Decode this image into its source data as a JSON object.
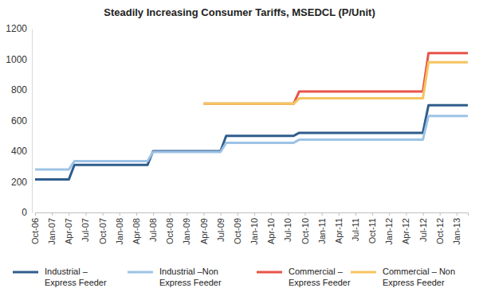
{
  "chart_data": {
    "type": "line",
    "title": "Steadily Increasing Consumer Tariffs, MSEDCL (P/Unit)",
    "categories": [
      "Oct-06",
      null,
      null,
      "Jan-07",
      null,
      null,
      "Apr-07",
      null,
      null,
      "Jul-07",
      null,
      null,
      "Oct-07",
      null,
      null,
      "Jan-08",
      null,
      null,
      "Apr-08",
      null,
      null,
      "Jul-08",
      null,
      null,
      "Oct-08",
      null,
      null,
      "Jan-09",
      null,
      null,
      "Apr-09",
      null,
      null,
      "Jul-09",
      null,
      null,
      "Oct-09",
      null,
      null,
      "Jan-10",
      null,
      null,
      "Apr-10",
      null,
      null,
      "Jul-10",
      null,
      null,
      "Oct-10",
      null,
      null,
      "Jan-11",
      null,
      null,
      "Apr-11",
      null,
      null,
      "Jul-11",
      null,
      null,
      "Oct-11",
      null,
      null,
      "Jan-12",
      null,
      null,
      "Apr-12",
      null,
      null,
      "Jul-12",
      null,
      null,
      "Oct-12",
      null,
      null,
      "Jan-13",
      null,
      null
    ],
    "series": [
      {
        "name": "Industrial – Express Feeder",
        "color": "#2F5D8C",
        "values": [
          215,
          215,
          215,
          215,
          215,
          215,
          215,
          310,
          310,
          310,
          310,
          310,
          310,
          310,
          310,
          310,
          310,
          310,
          310,
          310,
          310,
          400,
          400,
          400,
          400,
          400,
          400,
          400,
          400,
          400,
          400,
          400,
          400,
          400,
          500,
          500,
          500,
          500,
          500,
          500,
          500,
          500,
          500,
          500,
          500,
          500,
          500,
          520,
          520,
          520,
          520,
          520,
          520,
          520,
          520,
          520,
          520,
          520,
          520,
          520,
          520,
          520,
          520,
          520,
          520,
          520,
          520,
          520,
          520,
          520,
          700,
          700,
          700,
          700,
          700,
          700,
          700,
          700
        ]
      },
      {
        "name": "Industrial –Non Express Feeder",
        "color": "#9DC3E6",
        "values": [
          280,
          280,
          280,
          280,
          280,
          280,
          280,
          335,
          335,
          335,
          335,
          335,
          335,
          335,
          335,
          335,
          335,
          335,
          335,
          335,
          335,
          395,
          395,
          395,
          395,
          395,
          395,
          395,
          395,
          395,
          395,
          395,
          395,
          395,
          455,
          455,
          455,
          455,
          455,
          455,
          455,
          455,
          455,
          455,
          455,
          455,
          455,
          475,
          475,
          475,
          475,
          475,
          475,
          475,
          475,
          475,
          475,
          475,
          475,
          475,
          475,
          475,
          475,
          475,
          475,
          475,
          475,
          475,
          475,
          475,
          630,
          630,
          630,
          630,
          630,
          630,
          630,
          630
        ]
      },
      {
        "name": "Commercial – Express Feeder",
        "color": "#E8534A",
        "values": [
          null,
          null,
          null,
          null,
          null,
          null,
          null,
          null,
          null,
          null,
          null,
          null,
          null,
          null,
          null,
          null,
          null,
          null,
          null,
          null,
          null,
          null,
          null,
          null,
          null,
          null,
          null,
          null,
          null,
          null,
          710,
          710,
          710,
          710,
          710,
          710,
          710,
          710,
          710,
          710,
          710,
          710,
          710,
          710,
          710,
          710,
          710,
          790,
          790,
          790,
          790,
          790,
          790,
          790,
          790,
          790,
          790,
          790,
          790,
          790,
          790,
          790,
          790,
          790,
          790,
          790,
          790,
          790,
          790,
          790,
          1040,
          1040,
          1040,
          1040,
          1040,
          1040,
          1040,
          1040
        ]
      },
      {
        "name": "Commercial – Non Express Feeder",
        "color": "#F5C45E",
        "values": [
          null,
          null,
          null,
          null,
          null,
          null,
          null,
          null,
          null,
          null,
          null,
          null,
          null,
          null,
          null,
          null,
          null,
          null,
          null,
          null,
          null,
          null,
          null,
          null,
          null,
          null,
          null,
          null,
          null,
          null,
          710,
          710,
          710,
          710,
          710,
          710,
          710,
          710,
          710,
          710,
          710,
          710,
          710,
          710,
          710,
          710,
          710,
          745,
          745,
          745,
          745,
          745,
          745,
          745,
          745,
          745,
          745,
          745,
          745,
          745,
          745,
          745,
          745,
          745,
          745,
          745,
          745,
          745,
          745,
          745,
          980,
          980,
          980,
          980,
          980,
          980,
          980,
          980
        ]
      }
    ],
    "ylim": [
      0,
      1200
    ],
    "yticks": [
      0,
      200,
      400,
      600,
      800,
      1000,
      1200
    ],
    "grid": false,
    "legend": "bottom"
  }
}
